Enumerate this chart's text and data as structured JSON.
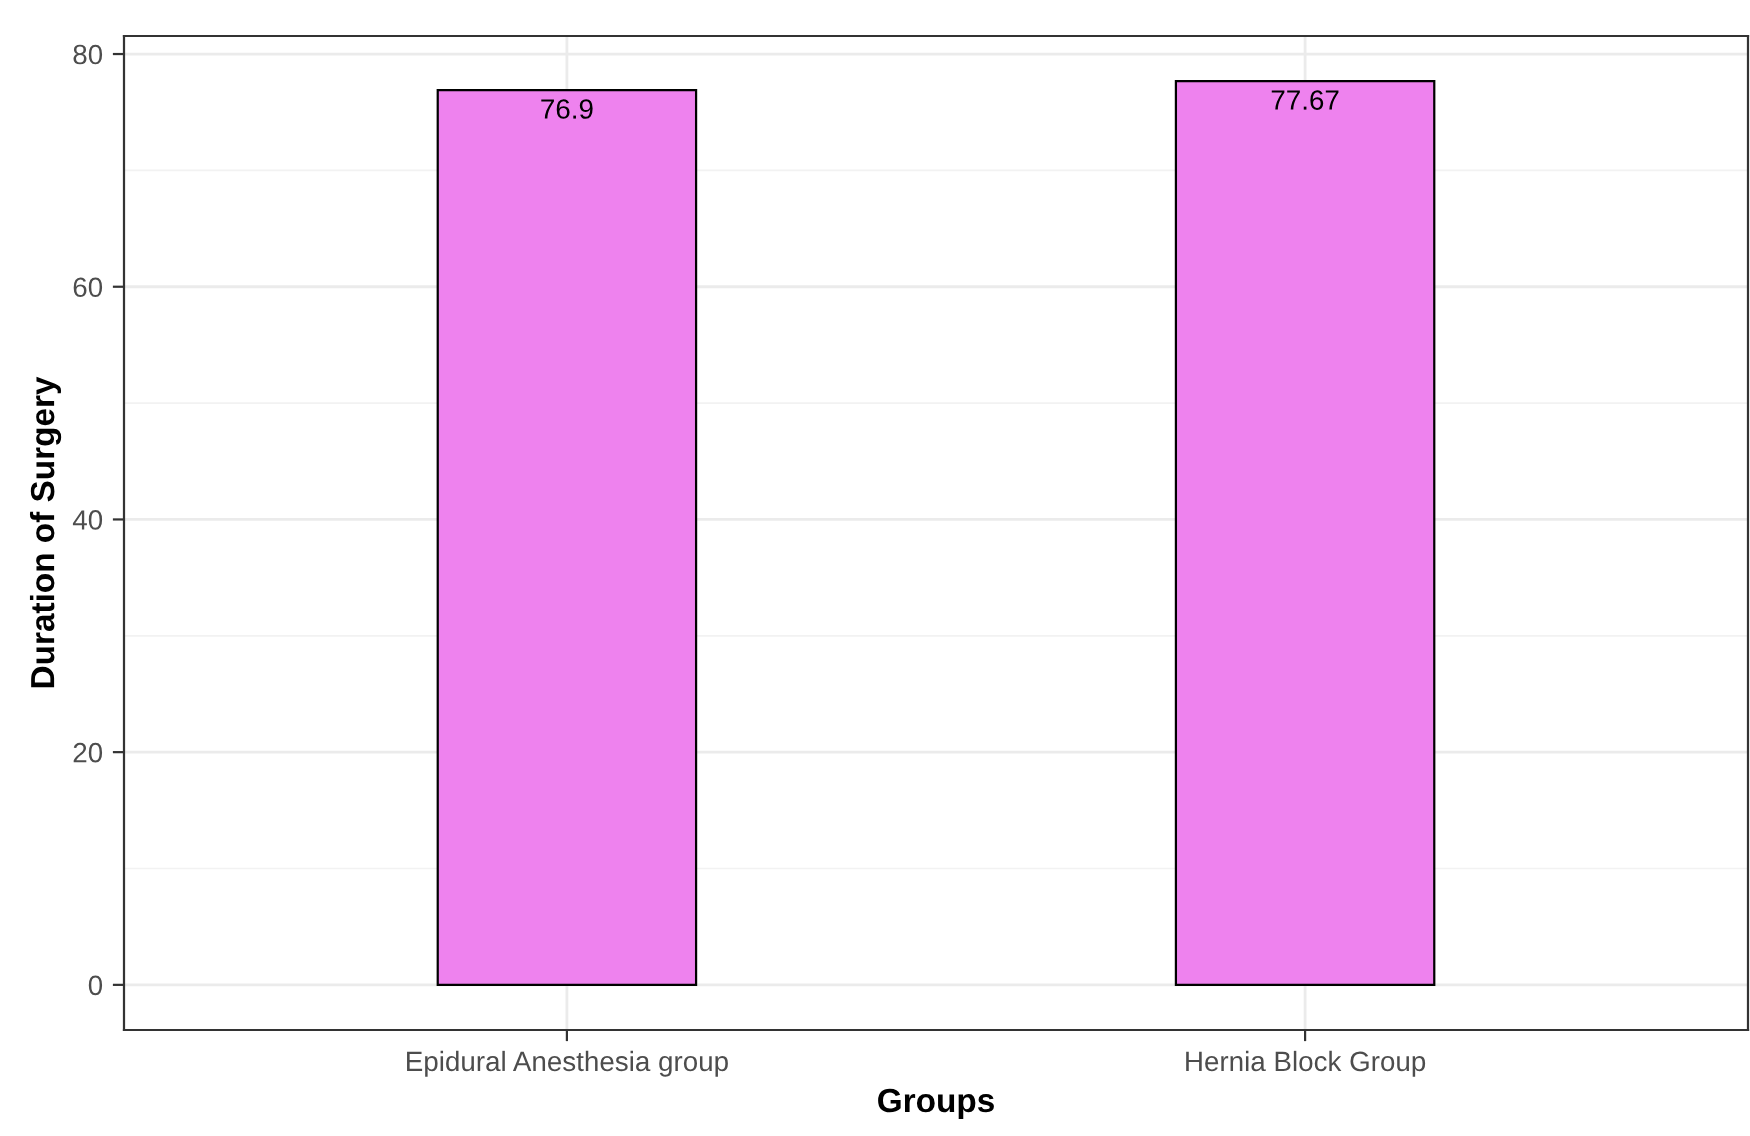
{
  "chart_data": {
    "type": "bar",
    "xlabel": "Groups",
    "ylabel": "Duration of Surgery",
    "categories": [
      "Epidural Anesthesia group",
      "Hernia Block Group"
    ],
    "values": [
      76.9,
      77.67
    ],
    "color": "#ee82ee",
    "data_labels": true,
    "ylim": [
      -3.88,
      81.55
    ],
    "yticks": [
      0,
      20,
      40,
      60,
      80
    ],
    "grid": true,
    "legend": false
  }
}
